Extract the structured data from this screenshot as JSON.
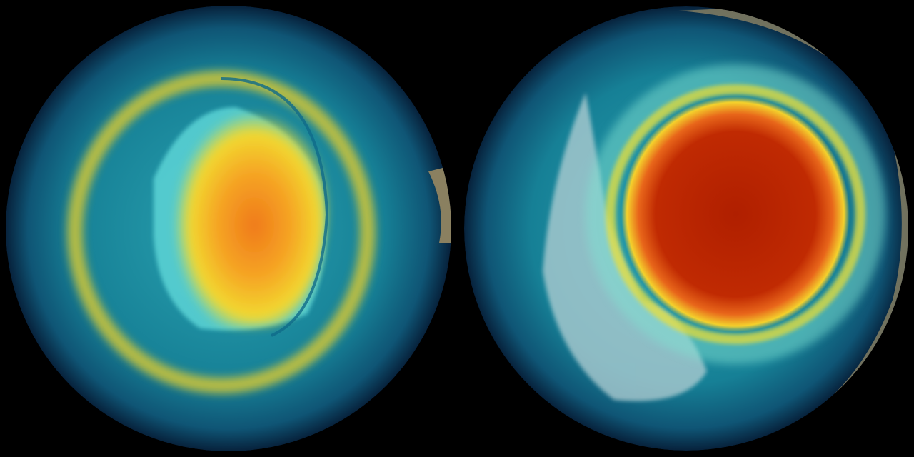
{
  "scene": {
    "background": "#000000",
    "globes": [
      {
        "name": "left-globe",
        "ocean": "#1a7f95",
        "rim": "#0a2a4a",
        "hot": "#f08a1a",
        "warm": "#f2d52a",
        "land": "#5fd6d8"
      },
      {
        "name": "right-globe",
        "ocean": "#1a7f95",
        "rim": "#0a2a4a",
        "hot": "#b82200",
        "warm": "#f2d52a",
        "land": "#b9d2d6"
      }
    ]
  }
}
